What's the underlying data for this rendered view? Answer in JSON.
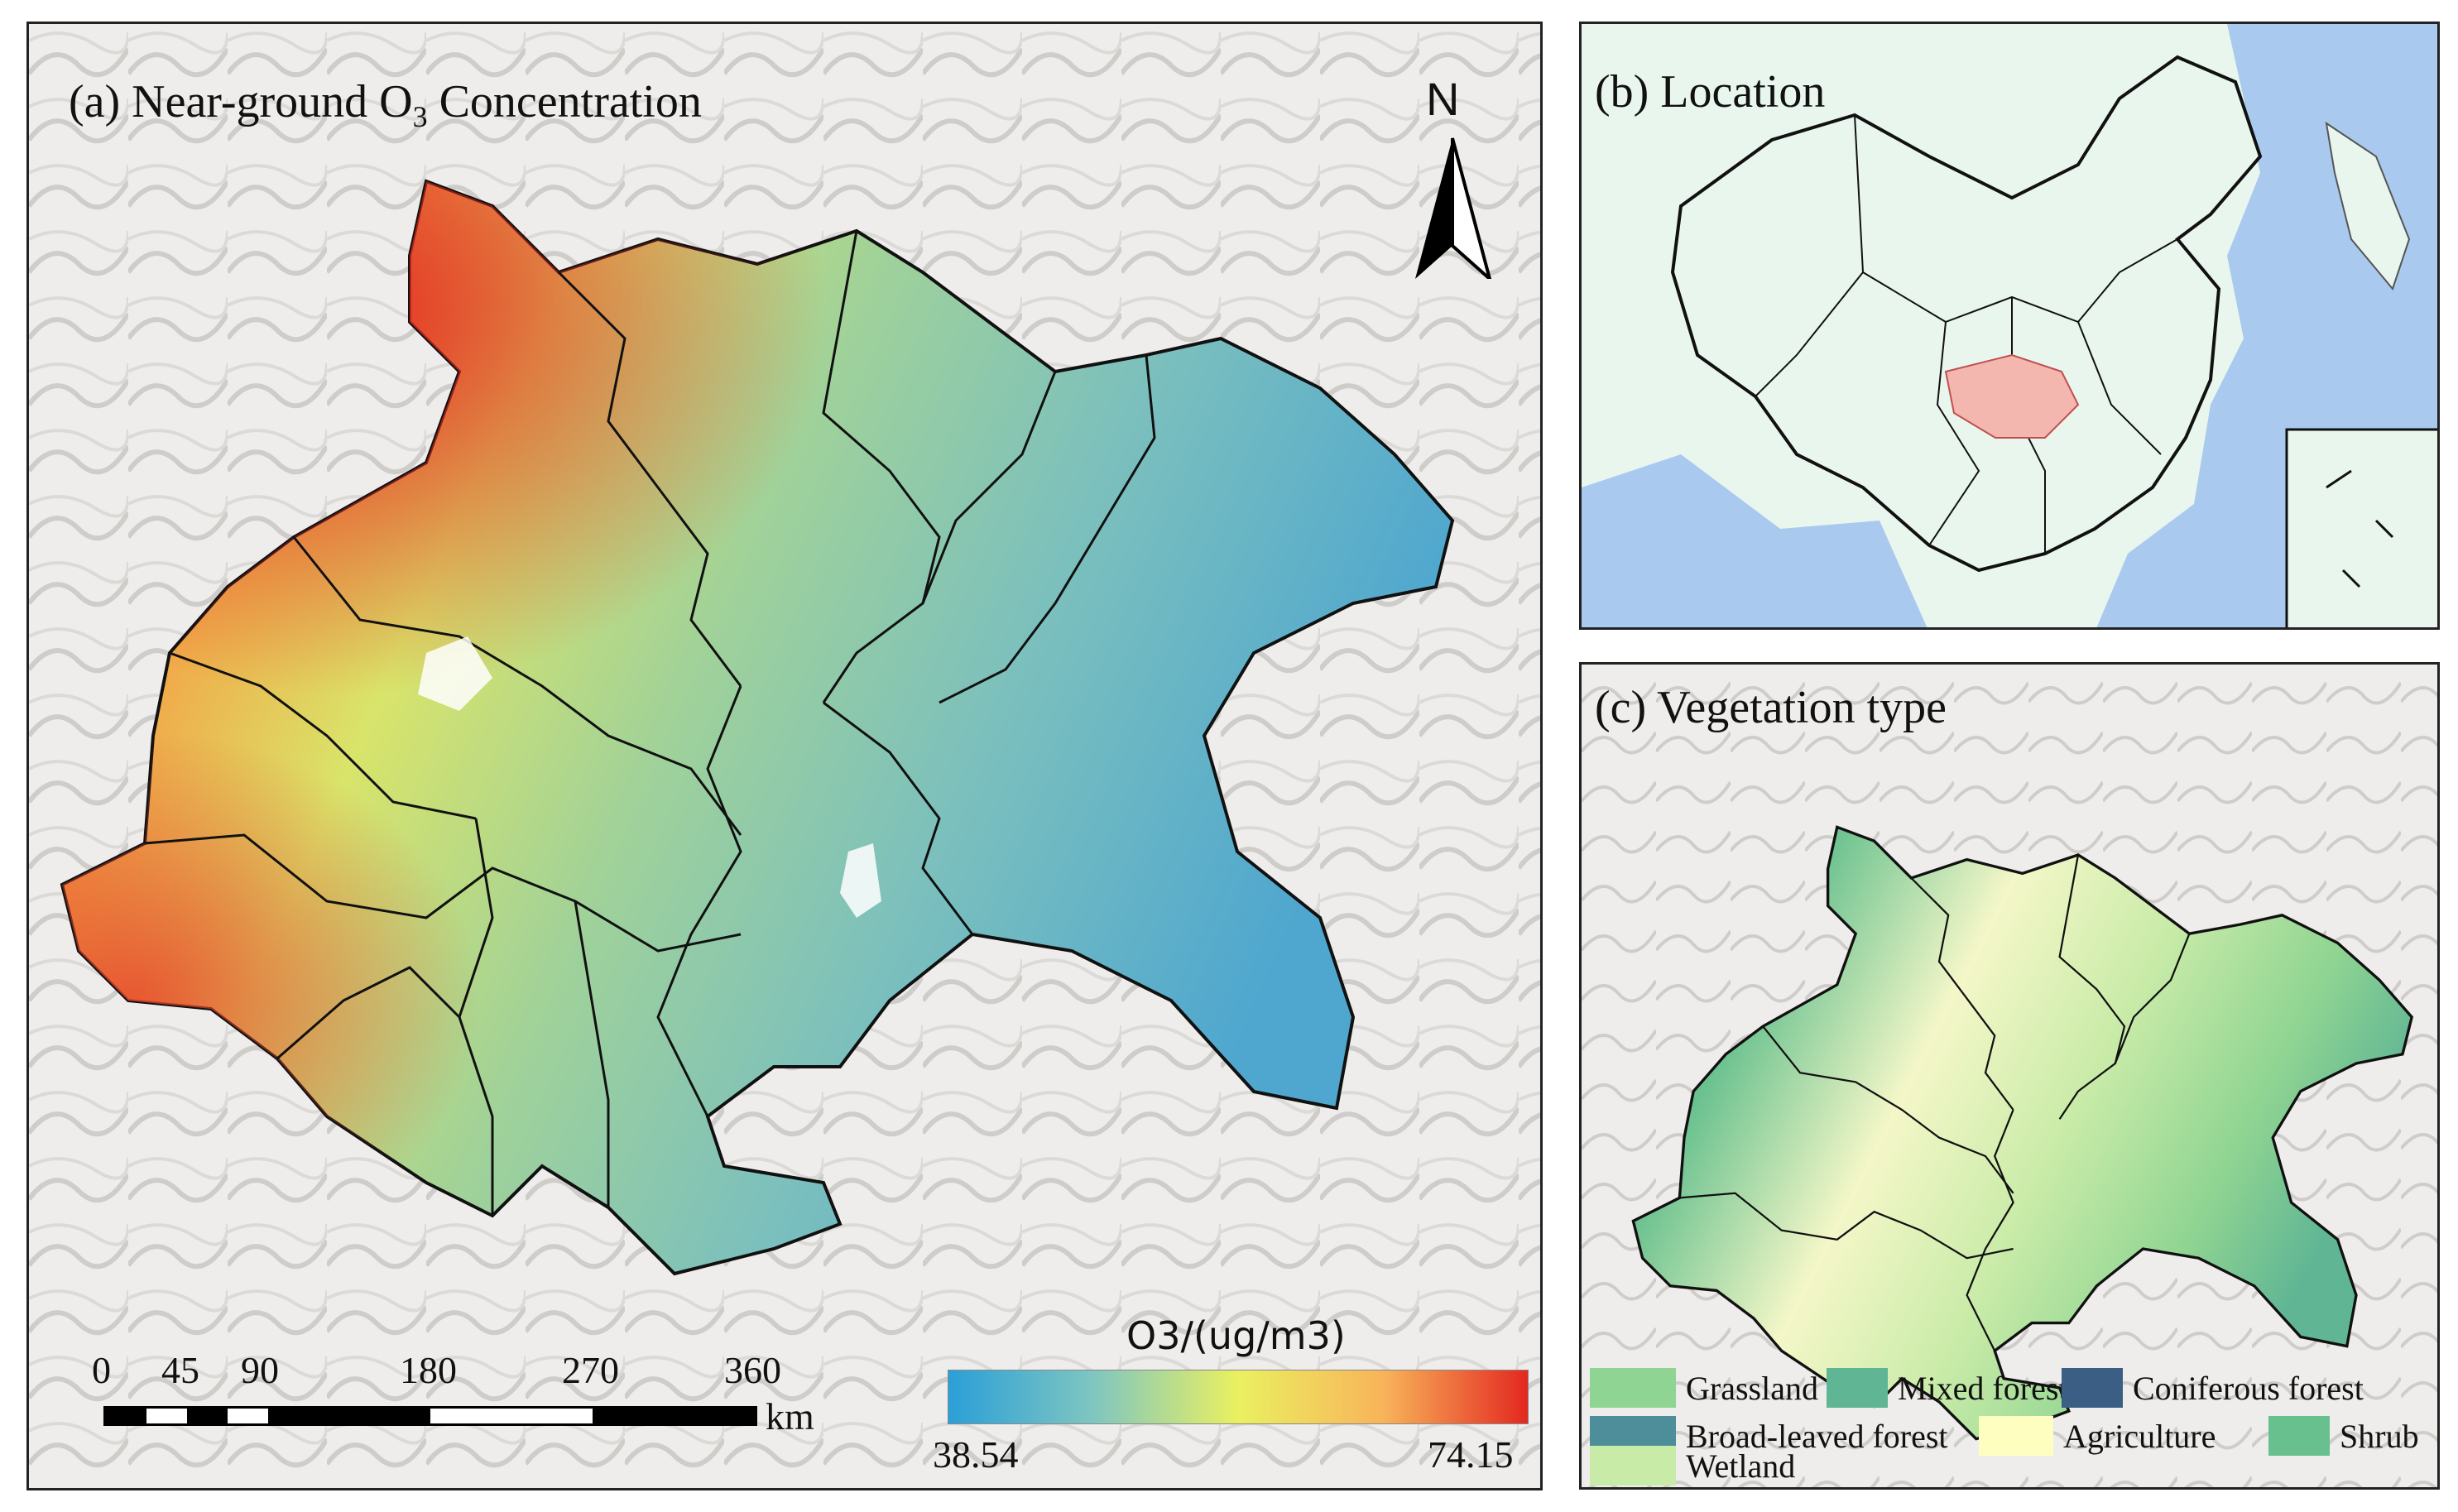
{
  "panel_a": {
    "title": "(a) Near-ground O",
    "title_sub": "3",
    "title_rest": " Concentration",
    "north_label": "N",
    "scale_ticks": [
      "0",
      "45",
      "90",
      "180",
      "270",
      "360"
    ],
    "scale_unit": "km",
    "colorbar_title": "O3/(ug/m3)",
    "colorbar_min": "38.54",
    "colorbar_max": "74.15",
    "colormap": [
      "#2b9fd8",
      "#7fc6c0",
      "#eaf060",
      "#f8b45a",
      "#e32820"
    ]
  },
  "panel_b": {
    "title": "(b) Location",
    "colors": {
      "sea": "#a9c9ee",
      "land": "#e9f6ee",
      "highlight": "#f4b7b0"
    }
  },
  "panel_c": {
    "title": "(c) Vegetation type",
    "legend": [
      {
        "label": "Grassland",
        "color": "#8fd492"
      },
      {
        "label": "Mixed forest",
        "color": "#5fb594"
      },
      {
        "label": "Coniferous forest",
        "color": "#3b5e85"
      },
      {
        "label": "Broad-leaved forest",
        "color": "#4d8e9a"
      },
      {
        "label": "Agriculture",
        "color": "#fefec0"
      },
      {
        "label": "Shrub",
        "color": "#67c08e"
      },
      {
        "label": "Wetland",
        "color": "#c9eba8"
      }
    ]
  }
}
